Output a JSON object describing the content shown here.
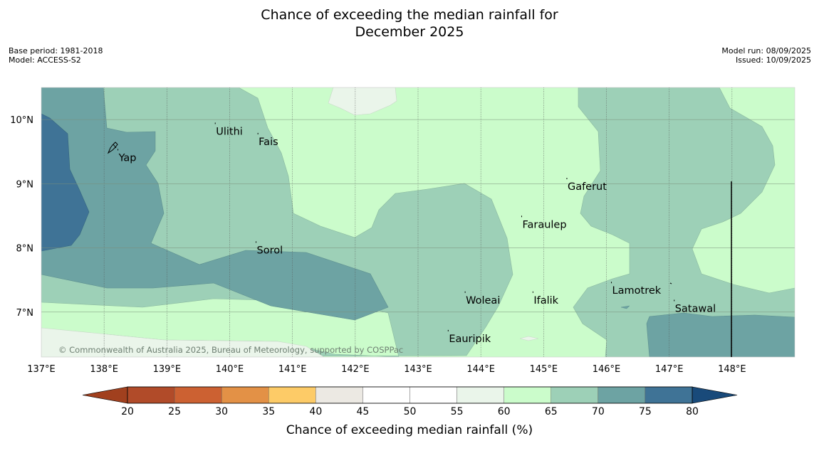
{
  "title": {
    "line1": "Chance of exceeding the median rainfall for",
    "line2": "December 2025"
  },
  "meta": {
    "base_period": "Base period: 1981-2018",
    "model": "Model: ACCESS-S2",
    "model_run": "Model run: 08/09/2025",
    "issued": "Issued: 10/09/2025"
  },
  "map": {
    "longitude_labels": [
      "137°E",
      "138°E",
      "139°E",
      "140°E",
      "141°E",
      "142°E",
      "143°E",
      "144°E",
      "145°E",
      "146°E",
      "147°E",
      "148°E"
    ],
    "latitude_labels": [
      "10°N",
      "9°N",
      "8°N",
      "7°N"
    ],
    "places": [
      {
        "name": "Ulithi",
        "lon": 139.77,
        "lat": 9.93
      },
      {
        "name": "Fais",
        "lon": 140.45,
        "lat": 9.77
      },
      {
        "name": "Yap",
        "lon": 138.22,
        "lat": 9.52
      },
      {
        "name": "Gaferut",
        "lon": 145.37,
        "lat": 9.07
      },
      {
        "name": "Faraulep",
        "lon": 144.65,
        "lat": 8.48
      },
      {
        "name": "Sorol",
        "lon": 140.42,
        "lat": 8.08
      },
      {
        "name": "Lamotrek",
        "lon": 146.08,
        "lat": 7.45
      },
      {
        "name": "Woleai",
        "lon": 143.75,
        "lat": 7.3
      },
      {
        "name": "Ifalik",
        "lon": 144.83,
        "lat": 7.3
      },
      {
        "name": "Satawal",
        "lon": 147.08,
        "lat": 7.17
      },
      {
        "name": "Eauripik",
        "lon": 143.48,
        "lat": 6.7
      }
    ],
    "copyright": "© Commonwealth of Australia 2025, Bureau of Meteorology, supported by COSPPac"
  },
  "colorbar": {
    "label": "Chance of exceeding median rainfall (%)",
    "ticks": [
      "20",
      "25",
      "30",
      "35",
      "40",
      "45",
      "50",
      "55",
      "60",
      "65",
      "70",
      "75",
      "80"
    ],
    "colors": [
      "#a1401e",
      "#b14b29",
      "#cc6132",
      "#e39146",
      "#fdcb67",
      "#ece9e3",
      "#ffffff",
      "#ffffff",
      "#eaf5ea",
      "#cbfccb",
      "#9dd0b7",
      "#6da3a3",
      "#3f7396",
      "#194a7a"
    ]
  },
  "legend_colors": {
    "band_55_60": "#eaf5ea",
    "band_60_65": "#cbfccb",
    "band_65_70": "#9dd0b7",
    "band_70_75": "#6da3a3",
    "band_75_80": "#3f7396"
  }
}
